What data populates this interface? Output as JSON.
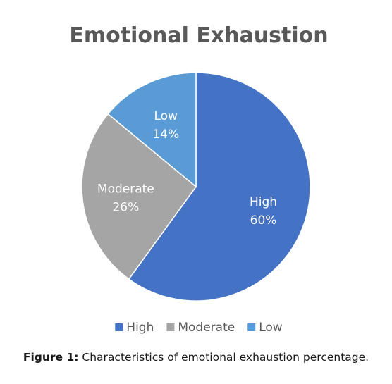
{
  "chart_data": {
    "type": "pie",
    "title": "Emotional Exhaustion",
    "categories": [
      "High",
      "Moderate",
      "Low"
    ],
    "values": [
      60,
      26,
      14
    ],
    "labels": [
      "60%",
      "26%",
      "14%"
    ],
    "colors": [
      "#4472c4",
      "#a5a5a5",
      "#5b9bd5"
    ],
    "legend": "bottom"
  },
  "caption": {
    "label": "Figure 1:",
    "text": " Characteristics of emotional exhaustion percentage."
  }
}
